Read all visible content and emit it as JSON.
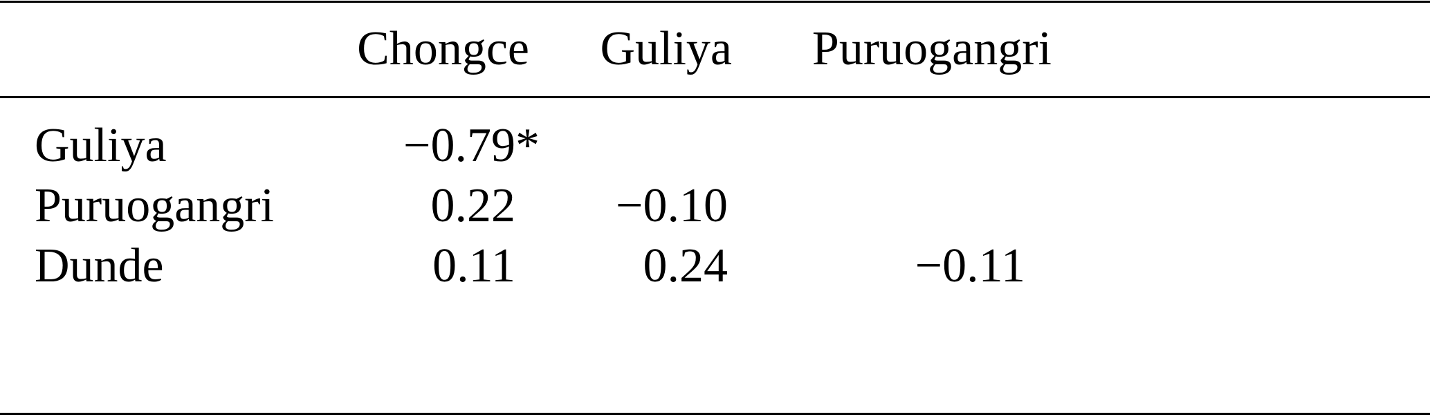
{
  "table": {
    "columns": [
      "Chongce",
      "Guliya",
      "Puruogangri"
    ],
    "rows": [
      {
        "label": "Guliya",
        "values": [
          "−0.79",
          "",
          ""
        ],
        "marks": [
          "*",
          "",
          ""
        ]
      },
      {
        "label": "Puruogangri",
        "values": [
          "0.22",
          "−0.10",
          ""
        ],
        "marks": [
          "",
          "",
          ""
        ]
      },
      {
        "label": "Dunde",
        "values": [
          "0.11",
          "0.24",
          "−0.11"
        ],
        "marks": [
          "",
          "",
          ""
        ]
      }
    ]
  }
}
